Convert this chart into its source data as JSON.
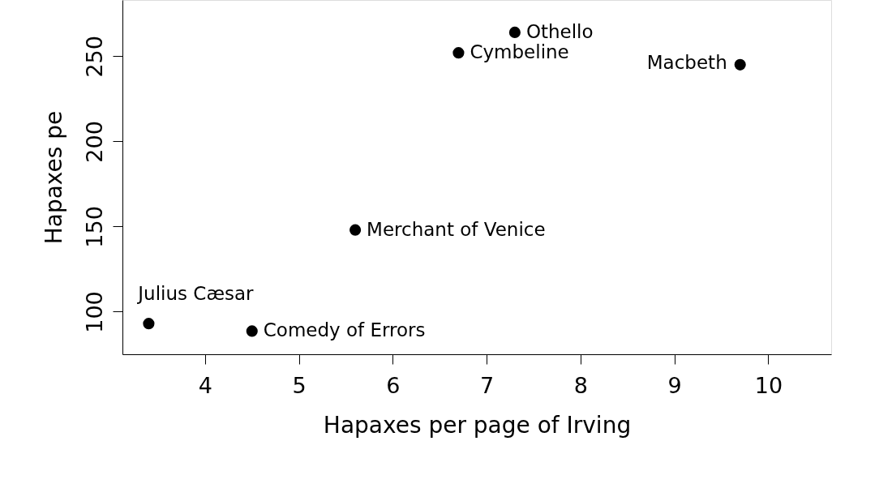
{
  "chart_data": {
    "type": "scatter",
    "xlabel": "Hapaxes per page of Irving",
    "ylabel": "Hapaxes pe",
    "x": [
      3.4,
      4.5,
      5.6,
      6.7,
      7.3,
      9.7
    ],
    "values": [
      93,
      88.6,
      148,
      252,
      264,
      245
    ],
    "color": "#000000",
    "marker": "circle",
    "xlim": [
      3.12,
      10.67
    ],
    "ylim": [
      75,
      283
    ],
    "xticks": [
      4,
      5,
      6,
      7,
      8,
      9,
      10
    ],
    "yticks": [
      100,
      150,
      200,
      250
    ],
    "annotations": [
      {
        "text": "Julius Cæsar",
        "x": 3.4,
        "y": 93
      },
      {
        "text": "Comedy of Errors",
        "x": 4.5,
        "y": 88.6
      },
      {
        "text": "Merchant of Venice",
        "x": 5.6,
        "y": 148
      },
      {
        "text": "Cymbeline",
        "x": 6.7,
        "y": 252
      },
      {
        "text": "Othello",
        "x": 7.3,
        "y": 264
      },
      {
        "text": "Macbeth",
        "x": 9.7,
        "y": 245
      }
    ]
  }
}
